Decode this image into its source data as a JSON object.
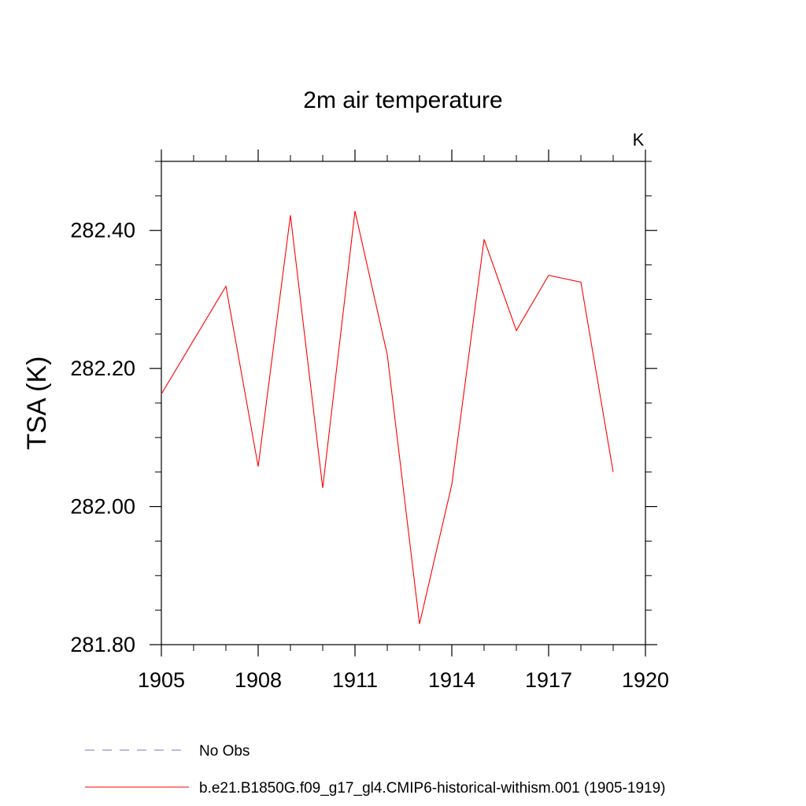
{
  "chart_data": {
    "type": "line",
    "title": "2m air temperature",
    "units_label": "K",
    "ylabel": "TSA  (K)",
    "xlabel": "",
    "xlim": [
      1905,
      1920
    ],
    "ylim": [
      281.8,
      282.5
    ],
    "x_ticks": [
      1905,
      1908,
      1911,
      1914,
      1917,
      1920
    ],
    "x_tick_labels": [
      "1905",
      "1908",
      "1911",
      "1914",
      "1917",
      "1920"
    ],
    "x_minor_step": 1,
    "y_ticks": [
      281.8,
      282.0,
      282.2,
      282.4
    ],
    "y_tick_labels": [
      "281.80",
      "282.00",
      "282.20",
      "282.40"
    ],
    "y_minor_step": 0.05,
    "grid": false,
    "legend_position": "bottom-left, below plot",
    "series": [
      {
        "name": "b.e21.B1850G.f09_g17_gl4.CMIP6-historical-withism.001 (1905-1919)",
        "color": "#ff0000",
        "dash": "solid",
        "x": [
          1905,
          1906,
          1907,
          1908,
          1909,
          1910,
          1911,
          1912,
          1913,
          1914,
          1915,
          1916,
          1917,
          1918,
          1919
        ],
        "y": [
          282.163,
          282.241,
          282.319,
          282.058,
          282.422,
          282.027,
          282.428,
          282.22,
          281.83,
          282.032,
          282.387,
          282.255,
          282.335,
          282.325,
          282.05
        ]
      },
      {
        "name": "No Obs",
        "color": "#7777bb",
        "dash": "dashed",
        "x": [],
        "y": []
      }
    ]
  }
}
